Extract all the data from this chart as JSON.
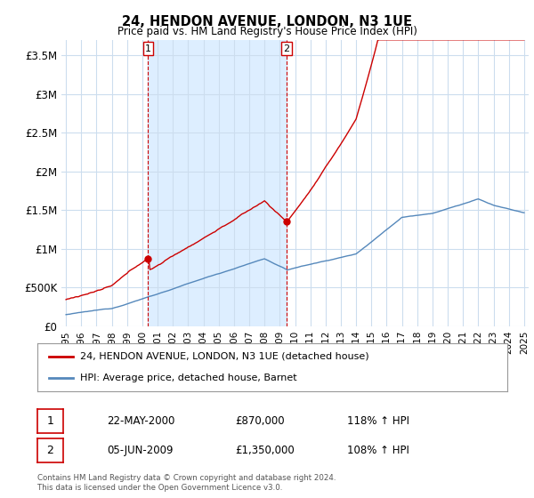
{
  "title": "24, HENDON AVENUE, LONDON, N3 1UE",
  "subtitle": "Price paid vs. HM Land Registry's House Price Index (HPI)",
  "legend_line1": "24, HENDON AVENUE, LONDON, N3 1UE (detached house)",
  "legend_line2": "HPI: Average price, detached house, Barnet",
  "annotation1_date": "22-MAY-2000",
  "annotation1_price": "£870,000",
  "annotation1_hpi": "118% ↑ HPI",
  "annotation2_date": "05-JUN-2009",
  "annotation2_price": "£1,350,000",
  "annotation2_hpi": "108% ↑ HPI",
  "footer": "Contains HM Land Registry data © Crown copyright and database right 2024.\nThis data is licensed under the Open Government Licence v3.0.",
  "red_color": "#cc0000",
  "blue_color": "#5588bb",
  "shade_color": "#ddeeff",
  "grid_color": "#ccddee",
  "background_color": "#ffffff",
  "sale1_x": 2000.38,
  "sale1_y": 870000,
  "sale2_x": 2009.43,
  "sale2_y": 1350000,
  "xlim": [
    1994.7,
    2025.3
  ],
  "ylim": [
    0,
    3700000
  ],
  "yticks": [
    0,
    500000,
    1000000,
    1500000,
    2000000,
    2500000,
    3000000,
    3500000
  ],
  "ytick_labels": [
    "£0",
    "£500K",
    "£1M",
    "£1.5M",
    "£2M",
    "£2.5M",
    "£3M",
    "£3.5M"
  ]
}
